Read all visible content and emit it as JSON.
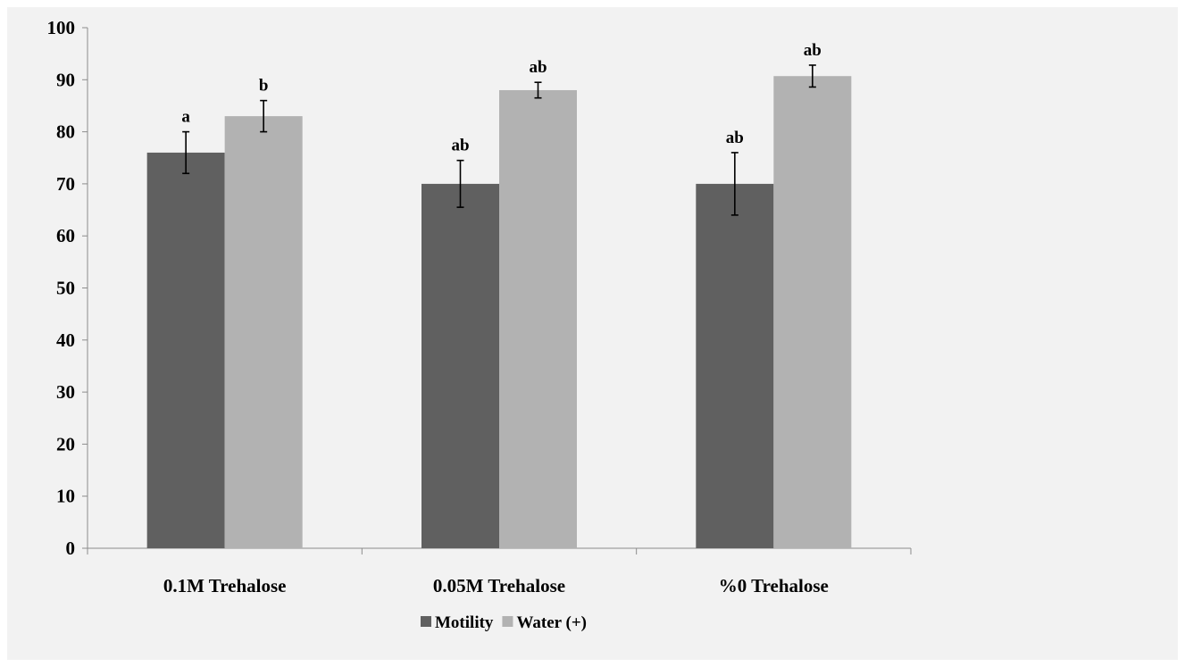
{
  "chart_data": {
    "type": "bar",
    "categories": [
      "0.1M Trehalose",
      "0.05M Trehalose",
      "%0 Trehalose"
    ],
    "series": [
      {
        "name": "Motility",
        "color": "#606060",
        "values": [
          76,
          70,
          70
        ],
        "errors": [
          4,
          4.5,
          6
        ],
        "labels": [
          "a",
          "ab",
          "ab"
        ]
      },
      {
        "name": "Water (+)",
        "color": "#b2b2b2",
        "values": [
          83,
          88,
          90.7
        ],
        "errors": [
          3,
          1.5,
          2.1
        ],
        "labels": [
          "b",
          "ab",
          "ab"
        ]
      }
    ],
    "ylim": [
      0,
      100
    ],
    "yticks": [
      0,
      10,
      20,
      30,
      40,
      50,
      60,
      70,
      80,
      90,
      100
    ],
    "legend_position": "bottom",
    "grid": false
  }
}
